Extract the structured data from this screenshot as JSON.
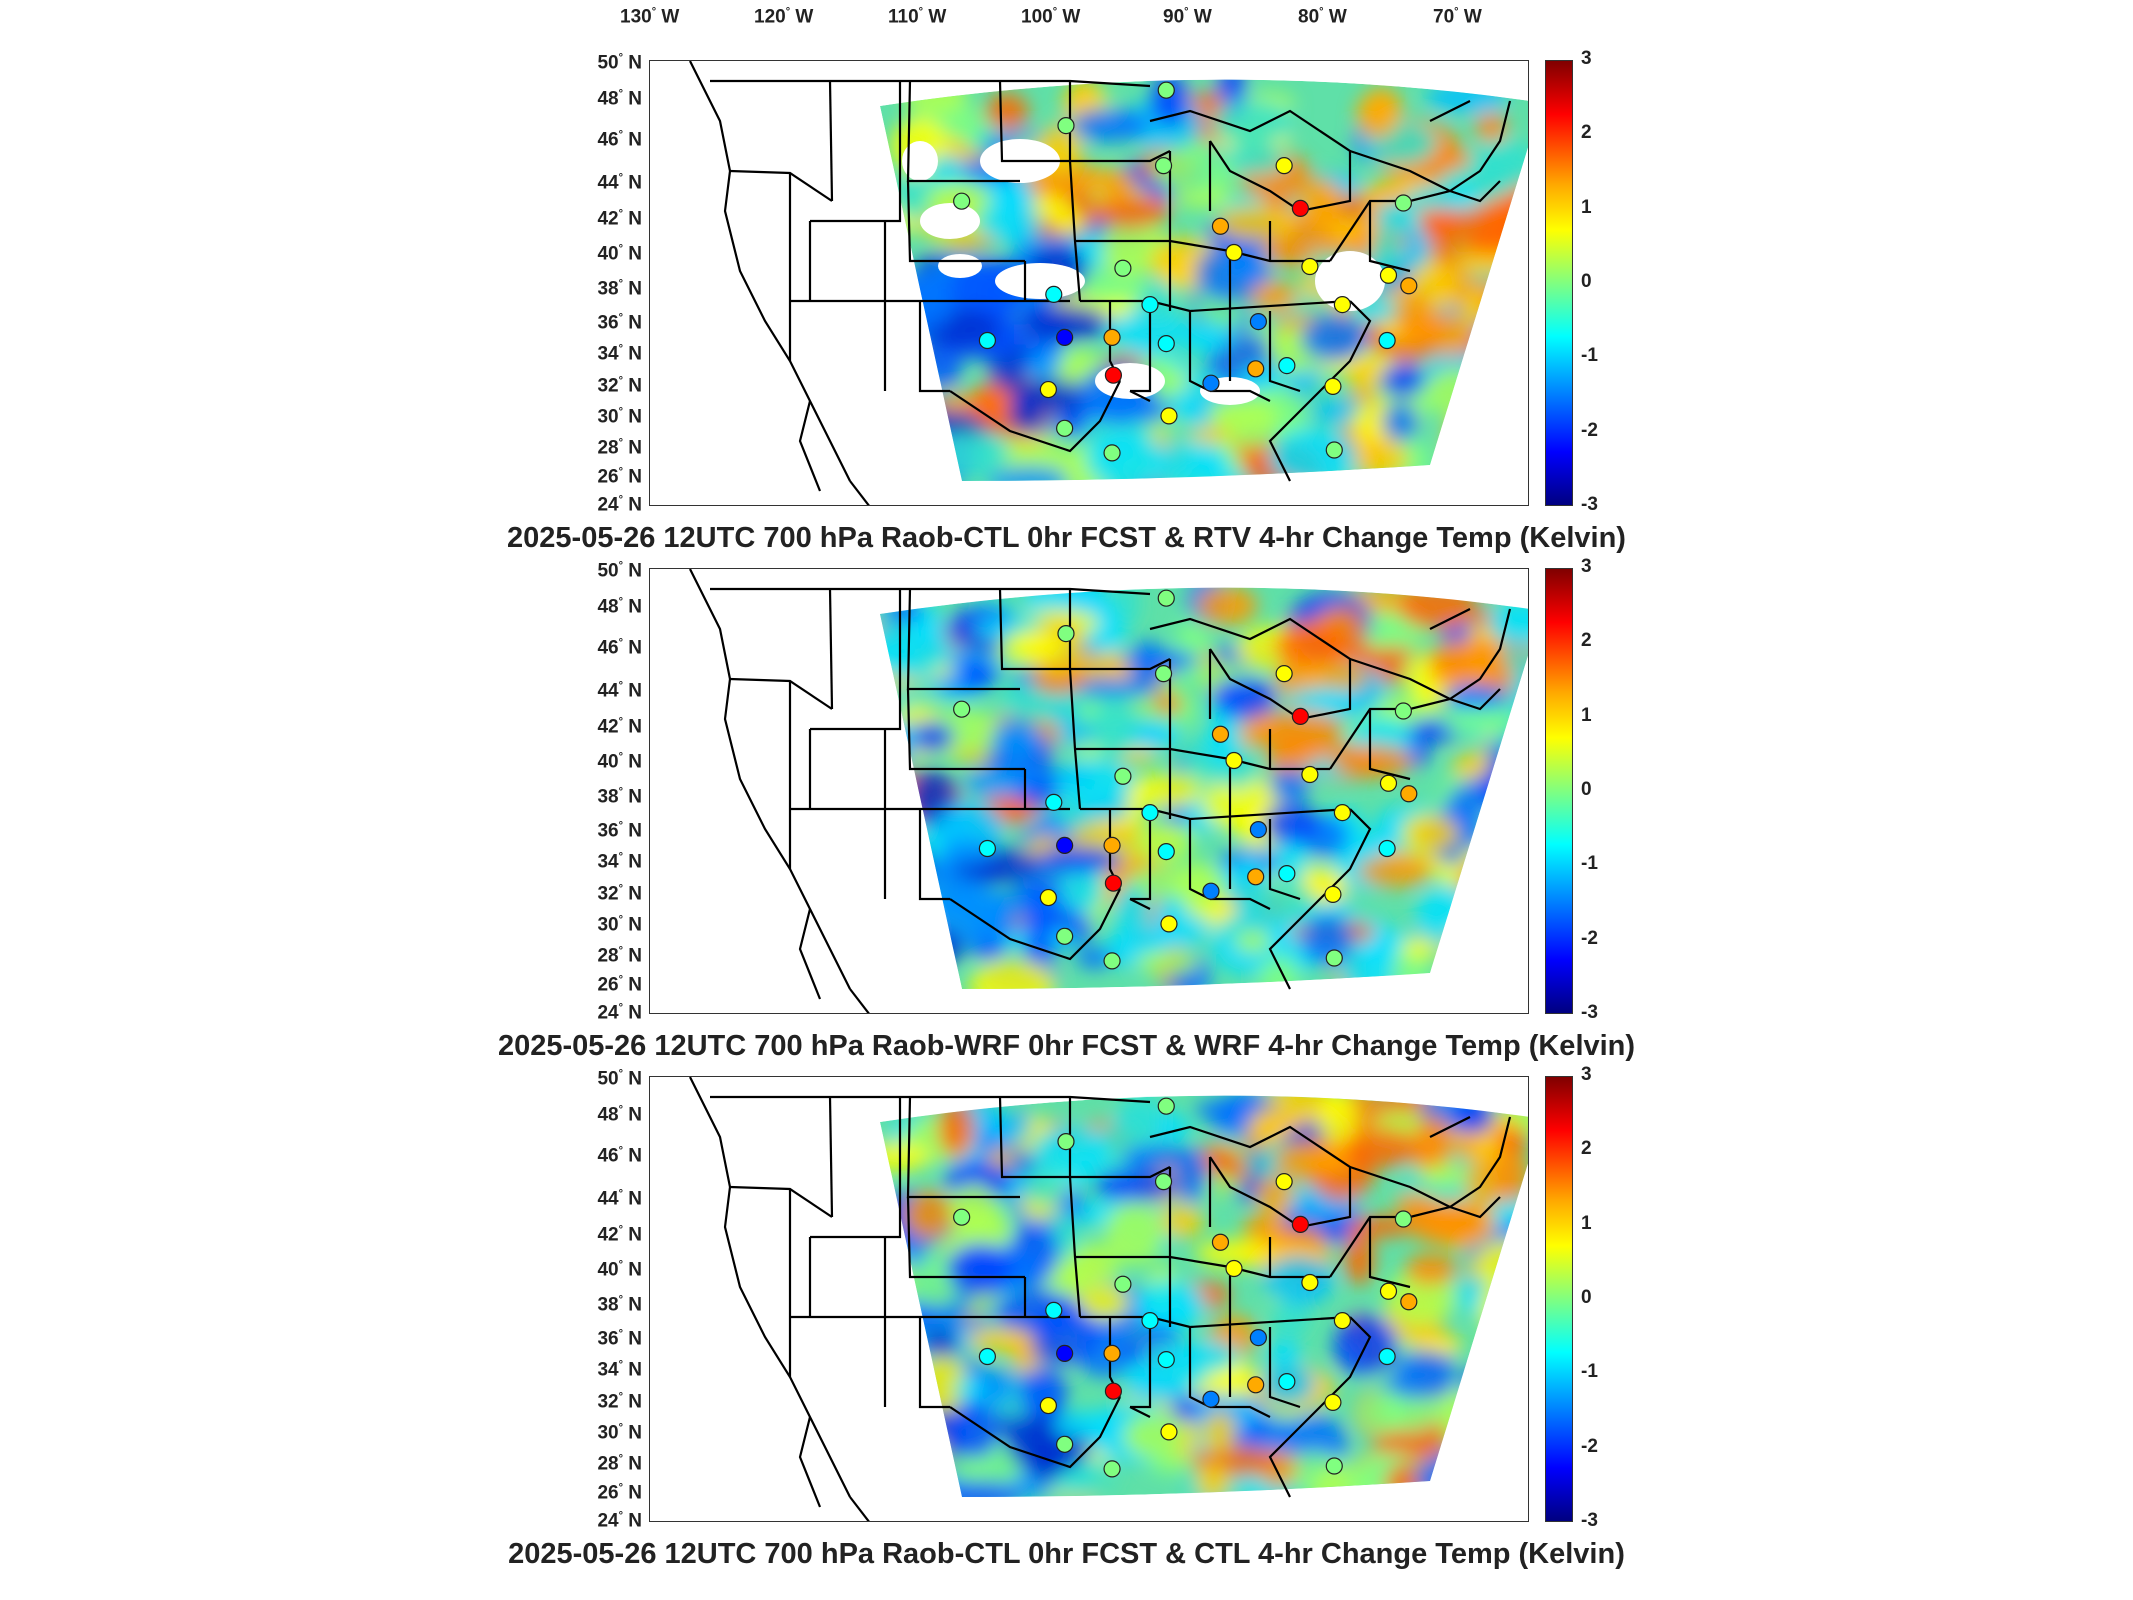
{
  "longitude_labels": [
    "130",
    "120",
    "110",
    "100",
    "90",
    "80",
    "70"
  ],
  "longitude_suffix": "W",
  "latitude_labels": [
    "50",
    "48",
    "46",
    "44",
    "42",
    "40",
    "38",
    "36",
    "34",
    "32",
    "30",
    "28",
    "26",
    "24"
  ],
  "latitude_suffix": "N",
  "colorbar": {
    "ticks": [
      "3",
      "2",
      "1",
      "0",
      "-1",
      "-2",
      "-3"
    ],
    "max": 3,
    "min": -3,
    "colors": [
      "#800000",
      "#ff0000",
      "#ffaa00",
      "#ffff00",
      "#80ff80",
      "#00ffff",
      "#0080ff",
      "#0000ff",
      "#000080"
    ]
  },
  "panels": [
    {
      "title": "2025-05-26 12UTC 700 hPa Raob-CTL 0hr FCST & RTV 4-hr Change Temp (Kelvin)"
    },
    {
      "title": "2025-05-26 12UTC 700 hPa Raob-WRF 0hr FCST & WRF 4-hr Change Temp (Kelvin)"
    },
    {
      "title": "2025-05-26 12UTC 700 hPa Raob-CTL 0hr FCST & CTL 4-hr Change Temp (Kelvin)"
    }
  ],
  "stations": [
    {
      "lon": -100.8,
      "lat": 46.8,
      "value": 0.2
    },
    {
      "lon": -93.6,
      "lat": 44.9,
      "value": 0.3
    },
    {
      "lon": -84.7,
      "lat": 44.9,
      "value": 0.9
    },
    {
      "lon": -83.5,
      "lat": 42.7,
      "value": 2.4
    },
    {
      "lon": -75.9,
      "lat": 43.0,
      "value": 0.2
    },
    {
      "lon": -108.5,
      "lat": 43.1,
      "value": 0.3
    },
    {
      "lon": -89.4,
      "lat": 41.7,
      "value": 1.4
    },
    {
      "lon": -88.4,
      "lat": 40.2,
      "value": 0.8
    },
    {
      "lon": -82.8,
      "lat": 39.4,
      "value": 0.9
    },
    {
      "lon": -96.6,
      "lat": 39.3,
      "value": -0.2
    },
    {
      "lon": -101.7,
      "lat": 37.8,
      "value": -0.6
    },
    {
      "lon": -94.6,
      "lat": 37.2,
      "value": -0.8
    },
    {
      "lon": -86.6,
      "lat": 36.2,
      "value": -1.5
    },
    {
      "lon": -100.9,
      "lat": 35.2,
      "value": -2.4
    },
    {
      "lon": -97.4,
      "lat": 35.2,
      "value": 1.6
    },
    {
      "lon": -93.4,
      "lat": 34.8,
      "value": -0.4
    },
    {
      "lon": -106.6,
      "lat": 35.0,
      "value": -0.7
    },
    {
      "lon": -97.3,
      "lat": 32.8,
      "value": 2.0
    },
    {
      "lon": -102.1,
      "lat": 31.9,
      "value": 0.9
    },
    {
      "lon": -90.1,
      "lat": 32.3,
      "value": -1.2
    },
    {
      "lon": -86.8,
      "lat": 33.2,
      "value": 1.2
    },
    {
      "lon": -84.5,
      "lat": 33.4,
      "value": -0.6
    },
    {
      "lon": -81.1,
      "lat": 32.1,
      "value": 0.8
    },
    {
      "lon": -80.4,
      "lat": 37.2,
      "value": 0.4
    },
    {
      "lon": -77.0,
      "lat": 38.9,
      "value": 0.6
    },
    {
      "lon": -75.5,
      "lat": 38.3,
      "value": 1.5
    },
    {
      "lon": -77.1,
      "lat": 35.0,
      "value": -0.9
    },
    {
      "lon": -93.2,
      "lat": 30.2,
      "value": 0.5
    },
    {
      "lon": -97.4,
      "lat": 27.8,
      "value": 0.2
    },
    {
      "lon": -100.9,
      "lat": 29.4,
      "value": 0.1
    },
    {
      "lon": -81.0,
      "lat": 28.0,
      "value": 0.3
    },
    {
      "lon": -93.4,
      "lat": 48.6,
      "value": 0.1
    }
  ]
}
